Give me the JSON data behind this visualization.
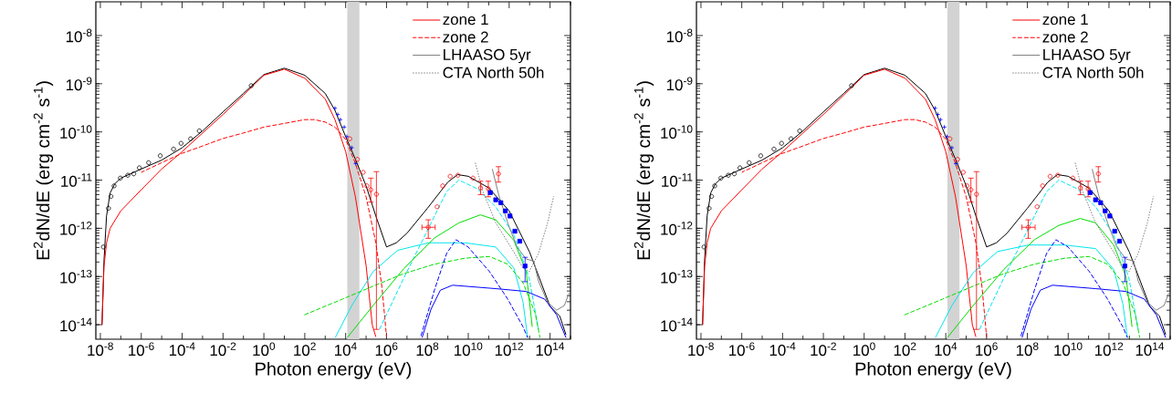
{
  "chart_data": [
    {
      "type": "line",
      "log": "xy",
      "legend": "top right",
      "xlabel": "Photon energy (eV)",
      "ylabel": "E$^{2}$dN/dE (erg cm$^{-2}$ s$^{-1}$)",
      "xlim": [
        6e-09,
        1000000000000000.0
      ],
      "ylim": [
        5e-15,
        5e-08
      ],
      "xticks": [
        {
          "value": 1e-08,
          "label": "10$^{-8}$"
        },
        {
          "value": 1e-06,
          "label": "10$^{-6}$"
        },
        {
          "value": 0.0001,
          "label": "10$^{-4}$"
        },
        {
          "value": 0.01,
          "label": "10$^{-2}$"
        },
        {
          "value": 1,
          "label": "10$^{0}$"
        },
        {
          "value": 100.0,
          "label": "10$^{2}$"
        },
        {
          "value": 10000.0,
          "label": "10$^{4}$"
        },
        {
          "value": 1000000.0,
          "label": "10$^{6}$"
        },
        {
          "value": 100000000.0,
          "label": "10$^{8}$"
        },
        {
          "value": 10000000000.0,
          "label": "10$^{10}$"
        },
        {
          "value": 1000000000000.0,
          "label": "10$^{12}$"
        },
        {
          "value": 100000000000000.0,
          "label": "10$^{14}$"
        }
      ],
      "yticks": [
        {
          "value": 1e-14,
          "label": "10$^{-14}$"
        },
        {
          "value": 1e-13,
          "label": "10$^{-13}$"
        },
        {
          "value": 1e-12,
          "label": "10$^{-12}$"
        },
        {
          "value": 1e-11,
          "label": "10$^{-11}$"
        },
        {
          "value": 1e-10,
          "label": "10$^{-10}$"
        },
        {
          "value": 1e-09,
          "label": "10$^{-9}$"
        },
        {
          "value": 1e-08,
          "label": "10$^{-8}$"
        }
      ],
      "bands": [
        {
          "axis": "x",
          "from": 12000.0,
          "to": 47000.0,
          "color": "#d3d3d3"
        }
      ],
      "series": [
        {
          "color": "#000000",
          "x": [
            1.2e-08,
            1.5e-08,
            2e-08,
            3e-08,
            5e-08,
            1e-07,
            1e-06,
            1e-05,
            0.0001,
            0.001,
            0.01,
            0.1,
            1,
            10,
            100,
            1000.0,
            3000.0,
            10000.0,
            30000.0,
            100000.0,
            300000.0,
            1000000.0,
            3000000.0,
            10000000.0,
            100000000.0,
            1000000000.0,
            3000000000.0,
            10000000000.0,
            100000000000.0,
            1000000000000.0,
            10000000000000.0,
            100000000000000.0,
            300000000000000.0,
            600000000000000.0
          ],
          "values": [
            1e-14,
            2.1e-13,
            1.8e-12,
            5.4e-12,
            8.3e-12,
            1.1e-11,
            1.7e-11,
            2.6e-11,
            4.7e-11,
            1.05e-10,
            2.6e-10,
            6.3e-10,
            1.55e-09,
            2.1e-09,
            1.5e-09,
            6.3e-10,
            2.8e-10,
            8e-11,
            2.7e-11,
            7.6e-12,
            1.8e-12,
            4.1e-13,
            5e-13,
            7.9e-13,
            2.6e-12,
            9.1e-12,
            1.3e-11,
            1.2e-11,
            6.9e-12,
            2.3e-12,
            3.2e-13,
            2.4e-14,
            1.5e-14,
            6.2e-15
          ]
        },
        {
          "name": "zone 1",
          "color": "#ff0000",
          "x": [
            1.2e-08,
            1.5e-08,
            2e-08,
            3e-08,
            1e-07,
            1e-06,
            1e-05,
            0.0001,
            0.001,
            0.01,
            0.1,
            1,
            10,
            100,
            1000.0,
            3000.0,
            10000.0,
            30000.0,
            100000.0,
            200000.0,
            300000.0
          ],
          "values": [
            1e-14,
            1.6e-13,
            5e-13,
            1e-12,
            2.3e-12,
            6.3e-12,
            1.7e-11,
            3.9e-11,
            9.5e-11,
            2.3e-10,
            5.8e-10,
            1.5e-09,
            2e-09,
            1.3e-09,
            4.8e-10,
            1.8e-10,
            3.9e-11,
            4.5e-12,
            1.7e-13,
            1e-14,
            5.6e-15
          ]
        },
        {
          "name": "zone 2",
          "color": "#ff0000",
          "line_style": "dashed",
          "x": [
            1e-06,
            1e-05,
            0.0001,
            0.001,
            0.01,
            0.1,
            1,
            10,
            100,
            300,
            1000.0,
            3000.0,
            10000.0,
            30000.0,
            100000.0,
            300000.0,
            600000.0,
            1000000.0
          ],
          "values": [
            1.45e-11,
            2.3e-11,
            3.6e-11,
            5.1e-11,
            7.3e-11,
            9.5e-11,
            1.26e-10,
            1.5e-10,
            1.8e-10,
            1.8e-10,
            1.6e-10,
            1.26e-10,
            7e-11,
            2.2e-11,
            4.5e-12,
            5e-13,
            5.9e-14,
            5.6e-15
          ]
        },
        {
          "color": "#00e5ee",
          "x": [
            3100.0,
            20000.0,
            220000.0,
            3500000.0,
            110000000.0,
            6900000000.0,
            220000000000.0,
            1700000000000.0,
            4800000000000.0,
            8000000000000.0
          ],
          "values": [
            5.4e-15,
            2.5e-14,
            1.26e-13,
            3.5e-13,
            5e-13,
            5e-13,
            4.1e-13,
            1.5e-13,
            2.9e-14,
            5.4e-15
          ]
        },
        {
          "color": "#00e5ee",
          "line_style": "dashed",
          "x": [
            450000.0,
            7000000.0,
            110000000.0,
            870000000.0,
            3500000000.0,
            28000000000.0,
            220000000000.0,
            1700000000000.0,
            9500000000000.0,
            27000000000000.0
          ],
          "values": [
            8e-15,
            9.3e-14,
            9.8e-13,
            5.8e-12,
            1e-11,
            6.6e-12,
            2.8e-12,
            7.2e-13,
            9.3e-14,
            8e-15
          ]
        },
        {
          "color": "#00dd00",
          "x": [
            12000.0,
            220000.0,
            7000000.0,
            220000000.0,
            3500000000.0,
            39000000000.0,
            220000000000.0,
            1700000000000.0,
            6800000000000.0,
            13500000000000.0
          ],
          "values": [
            5.4e-15,
            2.5e-14,
            1.45e-13,
            6.3e-13,
            1.3e-12,
            1.9e-12,
            1.5e-12,
            5.6e-13,
            1.26e-13,
            9e-15
          ]
        },
        {
          "color": "#00dd00",
          "line_style": "dashed",
          "x": [
            95,
            7000.0,
            220000.0,
            7000000.0,
            220000000.0,
            6900000000.0,
            110000000000.0,
            850000000000.0,
            4800000000000.0,
            19000000000000.0,
            32000000000000.0
          ],
          "values": [
            1.6e-14,
            3.4e-14,
            6.3e-14,
            1.15e-13,
            1.8e-13,
            2.4e-13,
            2.6e-13,
            1.8e-13,
            7.4e-14,
            1.7e-14,
            5.4e-15
          ]
        },
        {
          "color": "#0000ff",
          "x": [
            55000000.0,
            150000000.0,
            430000000.0,
            1700000000.0,
            220000000000.0,
            6800000000000.0,
            54000000000000.0,
            210000000000000.0,
            600000000000000.0
          ],
          "values": [
            5.4e-15,
            2.1e-14,
            5.2e-14,
            6.6e-14,
            5.6e-14,
            4.9e-14,
            3.4e-14,
            1.6e-14,
            5.4e-15
          ]
        },
        {
          "color": "#0000ff",
          "line_style": "dashed",
          "x": [
            46000000.0,
            220000000.0,
            870000000.0,
            2500000000.0,
            9800000000.0,
            110000000000.0,
            850000000000.0,
            4800000000000.0,
            8000000000000.0
          ],
          "values": [
            5.4e-15,
            5.2e-14,
            3e-13,
            5.8e-13,
            4.1e-13,
            1.26e-13,
            3.4e-14,
            9e-15,
            5.4e-15
          ]
        },
        {
          "name": "LHAASO 5yr",
          "color": "#808080",
          "x": [
            150000000000.0,
            310000000000.0,
            850000000000.0,
            2400000000000.0,
            6800000000000.0,
            16000000000000.0,
            27000000000000.0,
            76000000000000.0,
            210000000000000.0,
            500000000000000.0,
            850000000000000.0
          ],
          "values": [
            1.7e-11,
            4.9e-12,
            1.3e-12,
            4.1e-13,
            2.3e-13,
            2.1e-13,
            8.1e-14,
            2.9e-14,
            2e-14,
            2.5e-14,
            4.5e-14
          ]
        },
        {
          "name": "CTA North 50h",
          "color": "#808080",
          "line_style": "dotted",
          "x": [
            22000000000.0,
            52000000000.0,
            220000000000.0,
            1200000000000.0,
            4800000000000.0,
            9500000000000.0,
            27000000000000.0,
            76000000000000.0,
            150000000000000.0
          ],
          "values": [
            2.3e-11,
            5.8e-12,
            1.3e-12,
            4.1e-13,
            1.5e-13,
            1.26e-13,
            3e-13,
            1.3e-12,
            4.6e-12
          ]
        },
        {
          "type": "scatter",
          "marker": "circle",
          "color": "#000000",
          "x": [
            1.4e-08,
            2.5e-08,
            3.3e-08,
            4.7e-08,
            9.5e-08,
            2.2e-07,
            4.3e-07,
            8.1e-07,
            2.3e-06,
            8.5e-06,
            3.8e-05,
            8.9e-05,
            0.00026,
            0.00069,
            0.24
          ],
          "values": [
            4.1e-13,
            2.6e-12,
            4.6e-12,
            7.6e-12,
            1.1e-11,
            1.26e-11,
            1.35e-11,
            1.8e-11,
            2.3e-11,
            3.2e-11,
            4.4e-11,
            5.8e-11,
            7.2e-11,
            1.05e-10,
            9.1e-10
          ]
        },
        {
          "type": "scatter",
          "marker": "cross",
          "color": "#0000ff",
          "x": [
            3000.0,
            4100.0,
            5500.0,
            8500.0,
            11500.0,
            20000.0,
            31000.0
          ],
          "values": [
            3.1e-10,
            2.3e-10,
            1.8e-10,
            1.26e-10,
            8e-11,
            4.7e-11,
            2.2e-11
          ]
        },
        {
          "type": "scatter",
          "marker": "circle",
          "color": "#ff0000",
          "x": [
            16000.0,
            38000.0,
            72000.0,
            110000.0,
            170000.0,
            320000.0,
            110000000.0,
            300000000.0,
            560000000.0,
            1300000000.0,
            3100000000.0,
            17000000000.0,
            40000000000.0,
            95000000000.0,
            300000000000.0
          ],
          "values": [
            7.2e-11,
            2.7e-11,
            1.45e-11,
            7.6e-12,
            6.3e-12,
            5.1e-12,
            1.05e-12,
            2.8e-12,
            7.6e-12,
            1.2e-11,
            1.26e-11,
            1.1e-11,
            6.9e-12,
            6.6e-12,
            1.35e-11
          ],
          "errors": [
            null,
            null,
            null,
            null,
            [
              3.5e-12,
              1.1e-11
            ],
            [
              8e-15,
              1.5e-11
            ],
            [
              6.2e-13,
              1.5e-12
            ],
            null,
            null,
            null,
            null,
            null,
            [
              5e-12,
              9.5e-12
            ],
            [
              4.5e-12,
              9.5e-12
            ],
            [
              9.1e-12,
              1.9e-11
            ]
          ],
          "xerrors": [
            null,
            null,
            null,
            null,
            null,
            null,
            [
              54000000.0,
              240000000.0
            ],
            null,
            null,
            null,
            null,
            null,
            null,
            null,
            null
          ]
        },
        {
          "type": "scatter",
          "marker": "square",
          "color": "#0000ff",
          "x": [
            120000000000.0,
            220000000000.0,
            390000000000.0,
            650000000000.0,
            1100000000000.0,
            1900000000000.0,
            3300000000000.0,
            6000000000000.0
          ],
          "values": [
            5.5e-12,
            3.9e-12,
            3.4e-12,
            2.3e-12,
            1.8e-12,
            8.7e-13,
            5.4e-13,
            1.65e-13
          ],
          "errors": [
            null,
            null,
            null,
            null,
            null,
            null,
            null,
            [
              7.8e-14,
              2.5e-13
            ]
          ]
        }
      ]
    },
    {
      "type": "line",
      "log": "xy",
      "legend": "top right",
      "xlabel": "Photon energy (eV)",
      "ylabel": "E$^{2}$dN/dE (erg cm$^{-2}$ s$^{-1}$)",
      "xlim": [
        6e-09,
        1000000000000000.0
      ],
      "ylim": [
        5e-15,
        5e-08
      ],
      "xticks": [
        {
          "value": 1e-08,
          "label": "10$^{-8}$"
        },
        {
          "value": 1e-06,
          "label": "10$^{-6}$"
        },
        {
          "value": 0.0001,
          "label": "10$^{-4}$"
        },
        {
          "value": 0.01,
          "label": "10$^{-2}$"
        },
        {
          "value": 1,
          "label": "10$^{0}$"
        },
        {
          "value": 100.0,
          "label": "10$^{2}$"
        },
        {
          "value": 10000.0,
          "label": "10$^{4}$"
        },
        {
          "value": 1000000.0,
          "label": "10$^{6}$"
        },
        {
          "value": 100000000.0,
          "label": "10$^{8}$"
        },
        {
          "value": 10000000000.0,
          "label": "10$^{10}$"
        },
        {
          "value": 1000000000000.0,
          "label": "10$^{12}$"
        },
        {
          "value": 100000000000000.0,
          "label": "10$^{14}$"
        }
      ],
      "yticks": [
        {
          "value": 1e-14,
          "label": "10$^{-14}$"
        },
        {
          "value": 1e-13,
          "label": "10$^{-13}$"
        },
        {
          "value": 1e-12,
          "label": "10$^{-12}$"
        },
        {
          "value": 1e-11,
          "label": "10$^{-11}$"
        },
        {
          "value": 1e-10,
          "label": "10$^{-10}$"
        },
        {
          "value": 1e-09,
          "label": "10$^{-9}$"
        },
        {
          "value": 1e-08,
          "label": "10$^{-8}$"
        }
      ],
      "bands": [
        {
          "axis": "x",
          "from": 12000.0,
          "to": 47000.0,
          "color": "#d3d3d3"
        }
      ],
      "series": [
        {
          "color": "#000000",
          "x": [
            1.2e-08,
            1.5e-08,
            2e-08,
            3e-08,
            5e-08,
            1e-07,
            1e-06,
            1e-05,
            0.0001,
            0.001,
            0.01,
            0.1,
            1,
            10,
            100,
            1000.0,
            3000.0,
            10000.0,
            30000.0,
            100000.0,
            300000.0,
            1000000.0,
            3000000.0,
            10000000.0,
            100000000.0,
            1000000000.0,
            3000000000.0,
            10000000000.0,
            100000000000.0,
            1000000000000.0,
            10000000000000.0,
            100000000000000.0,
            300000000000000.0,
            600000000000000.0
          ],
          "values": [
            1e-14,
            2.1e-13,
            1.8e-12,
            5.4e-12,
            8.3e-12,
            1.1e-11,
            1.7e-11,
            2.6e-11,
            4.7e-11,
            1.05e-10,
            2.6e-10,
            6.3e-10,
            1.55e-09,
            2.1e-09,
            1.5e-09,
            6.3e-10,
            2.8e-10,
            8e-11,
            2.7e-11,
            7.6e-12,
            1.8e-12,
            4.1e-13,
            5e-13,
            7.9e-13,
            2.6e-12,
            9.1e-12,
            1.3e-11,
            1.2e-11,
            6.9e-12,
            2.3e-12,
            3.2e-13,
            2.4e-14,
            1.5e-14,
            6.2e-15
          ]
        },
        {
          "name": "zone 1",
          "color": "#ff0000",
          "x": [
            1.2e-08,
            1.5e-08,
            2e-08,
            3e-08,
            1e-07,
            1e-06,
            1e-05,
            0.0001,
            0.001,
            0.01,
            0.1,
            1,
            10,
            100,
            1000.0,
            3000.0,
            10000.0,
            30000.0,
            100000.0,
            200000.0,
            300000.0
          ],
          "values": [
            1e-14,
            1.6e-13,
            5e-13,
            1e-12,
            2.3e-12,
            6.3e-12,
            1.7e-11,
            3.9e-11,
            9.5e-11,
            2.3e-10,
            5.8e-10,
            1.5e-09,
            2e-09,
            1.3e-09,
            4.8e-10,
            1.8e-10,
            3.9e-11,
            4.5e-12,
            1.7e-13,
            1e-14,
            5.6e-15
          ]
        },
        {
          "name": "zone 2",
          "color": "#ff0000",
          "line_style": "dashed",
          "x": [
            1e-06,
            1e-05,
            0.0001,
            0.001,
            0.01,
            0.1,
            1,
            10,
            100,
            300,
            1000.0,
            3000.0,
            10000.0,
            30000.0,
            100000.0,
            300000.0,
            600000.0,
            1000000.0
          ],
          "values": [
            1.45e-11,
            2.3e-11,
            3.6e-11,
            5.1e-11,
            7.3e-11,
            9.5e-11,
            1.26e-10,
            1.5e-10,
            1.8e-10,
            1.8e-10,
            1.6e-10,
            1.26e-10,
            7e-11,
            2.2e-11,
            4.5e-12,
            5e-13,
            5.9e-14,
            5.6e-15
          ]
        },
        {
          "color": "#00e5ee",
          "x": [
            3100.0,
            20000.0,
            220000.0,
            3500000.0,
            110000000.0,
            6900000000.0,
            220000000000.0,
            1700000000000.0,
            4800000000000.0,
            8000000000000.0
          ],
          "values": [
            5.4e-15,
            2.5e-14,
            1.2e-13,
            3.3e-13,
            4.5e-13,
            4.5e-13,
            3.8e-13,
            1.4e-13,
            2.7e-14,
            5.4e-15
          ]
        },
        {
          "color": "#00e5ee",
          "line_style": "dashed",
          "x": [
            450000.0,
            7000000.0,
            110000000.0,
            870000000.0,
            3500000000.0,
            28000000000.0,
            220000000000.0,
            1700000000000.0,
            9500000000000.0,
            27000000000000.0
          ],
          "values": [
            8e-15,
            9.3e-14,
            9.8e-13,
            5.8e-12,
            1e-11,
            6.6e-12,
            2.8e-12,
            7.2e-13,
            9.3e-14,
            8e-15
          ]
        },
        {
          "color": "#00dd00",
          "x": [
            12000.0,
            220000.0,
            7000000.0,
            220000000.0,
            3500000000.0,
            39000000000.0,
            220000000000.0,
            1700000000000.0,
            6800000000000.0,
            13500000000000.0
          ],
          "values": [
            5.4e-15,
            2.5e-14,
            1.4e-13,
            5.8e-13,
            1.15e-12,
            1.6e-12,
            1.3e-12,
            4.5e-13,
            1e-13,
            9e-15
          ]
        },
        {
          "color": "#00dd00",
          "line_style": "dashed",
          "x": [
            95,
            7000.0,
            220000.0,
            7000000.0,
            220000000.0,
            6900000000.0,
            110000000000.0,
            850000000000.0,
            4800000000000.0,
            19000000000000.0,
            32000000000000.0
          ],
          "values": [
            1.6e-14,
            3.4e-14,
            6.3e-14,
            1.15e-13,
            1.8e-13,
            2.4e-13,
            2.6e-13,
            1.8e-13,
            7.4e-14,
            1.7e-14,
            5.4e-15
          ]
        },
        {
          "color": "#0000ff",
          "x": [
            55000000.0,
            150000000.0,
            430000000.0,
            1700000000.0,
            220000000000.0,
            6800000000000.0,
            54000000000000.0,
            210000000000000.0,
            600000000000000.0
          ],
          "values": [
            5.4e-15,
            2.1e-14,
            5.2e-14,
            6.6e-14,
            5.6e-14,
            4.9e-14,
            3.4e-14,
            1.6e-14,
            5.4e-15
          ]
        },
        {
          "color": "#0000ff",
          "line_style": "dashed",
          "x": [
            46000000.0,
            220000000.0,
            870000000.0,
            2500000000.0,
            9800000000.0,
            110000000000.0,
            850000000000.0,
            4800000000000.0,
            8000000000000.0
          ],
          "values": [
            5.4e-15,
            5.2e-14,
            3e-13,
            5.8e-13,
            4.1e-13,
            1.26e-13,
            3.4e-14,
            9e-15,
            5.4e-15
          ]
        },
        {
          "name": "LHAASO 5yr",
          "color": "#808080",
          "x": [
            150000000000.0,
            310000000000.0,
            850000000000.0,
            2400000000000.0,
            6800000000000.0,
            16000000000000.0,
            27000000000000.0,
            76000000000000.0,
            210000000000000.0,
            500000000000000.0,
            850000000000000.0
          ],
          "values": [
            1.7e-11,
            4.9e-12,
            1.3e-12,
            4.1e-13,
            2.3e-13,
            2.1e-13,
            8.1e-14,
            2.9e-14,
            2e-14,
            2.5e-14,
            4.5e-14
          ]
        },
        {
          "name": "CTA North 50h",
          "color": "#808080",
          "line_style": "dotted",
          "x": [
            22000000000.0,
            52000000000.0,
            220000000000.0,
            1200000000000.0,
            4800000000000.0,
            9500000000000.0,
            27000000000000.0,
            76000000000000.0,
            150000000000000.0
          ],
          "values": [
            2.3e-11,
            5.8e-12,
            1.3e-12,
            4.1e-13,
            1.5e-13,
            1.26e-13,
            3e-13,
            1.3e-12,
            4.6e-12
          ]
        },
        {
          "type": "scatter",
          "marker": "circle",
          "color": "#000000",
          "x": [
            1.4e-08,
            2.5e-08,
            3.3e-08,
            4.7e-08,
            9.5e-08,
            2.2e-07,
            4.3e-07,
            8.1e-07,
            2.3e-06,
            8.5e-06,
            3.8e-05,
            8.9e-05,
            0.00026,
            0.00069,
            0.24
          ],
          "values": [
            4.1e-13,
            2.6e-12,
            4.6e-12,
            7.6e-12,
            1.1e-11,
            1.26e-11,
            1.35e-11,
            1.8e-11,
            2.3e-11,
            3.2e-11,
            4.4e-11,
            5.8e-11,
            7.2e-11,
            1.05e-10,
            9.1e-10
          ]
        },
        {
          "type": "scatter",
          "marker": "cross",
          "color": "#0000ff",
          "x": [
            3000.0,
            4100.0,
            5500.0,
            8500.0,
            11500.0,
            20000.0,
            31000.0
          ],
          "values": [
            3.1e-10,
            2.3e-10,
            1.8e-10,
            1.26e-10,
            8e-11,
            4.7e-11,
            2.2e-11
          ]
        },
        {
          "type": "scatter",
          "marker": "circle",
          "color": "#ff0000",
          "x": [
            16000.0,
            38000.0,
            72000.0,
            110000.0,
            170000.0,
            320000.0,
            110000000.0,
            300000000.0,
            560000000.0,
            1300000000.0,
            3100000000.0,
            17000000000.0,
            40000000000.0,
            95000000000.0,
            300000000000.0
          ],
          "values": [
            7.2e-11,
            2.7e-11,
            1.45e-11,
            7.6e-12,
            6.3e-12,
            5.1e-12,
            1.05e-12,
            2.8e-12,
            7.6e-12,
            1.2e-11,
            1.26e-11,
            1.1e-11,
            6.9e-12,
            6.6e-12,
            1.35e-11
          ],
          "errors": [
            null,
            null,
            null,
            null,
            [
              3.5e-12,
              1.1e-11
            ],
            [
              8e-15,
              1.5e-11
            ],
            [
              6.2e-13,
              1.5e-12
            ],
            null,
            null,
            null,
            null,
            null,
            [
              5e-12,
              9.5e-12
            ],
            [
              4.5e-12,
              9.5e-12
            ],
            [
              9.1e-12,
              1.9e-11
            ]
          ],
          "xerrors": [
            null,
            null,
            null,
            null,
            null,
            null,
            [
              54000000.0,
              240000000.0
            ],
            null,
            null,
            null,
            null,
            null,
            null,
            null,
            null
          ]
        },
        {
          "type": "scatter",
          "marker": "square",
          "color": "#0000ff",
          "x": [
            120000000000.0,
            220000000000.0,
            390000000000.0,
            650000000000.0,
            1100000000000.0,
            1900000000000.0,
            3300000000000.0,
            6000000000000.0
          ],
          "values": [
            5.5e-12,
            3.9e-12,
            3.4e-12,
            2.3e-12,
            1.8e-12,
            8.7e-13,
            5.4e-13,
            1.65e-13
          ],
          "errors": [
            null,
            null,
            null,
            null,
            null,
            null,
            null,
            [
              7.8e-14,
              2.5e-13
            ]
          ]
        }
      ]
    }
  ]
}
